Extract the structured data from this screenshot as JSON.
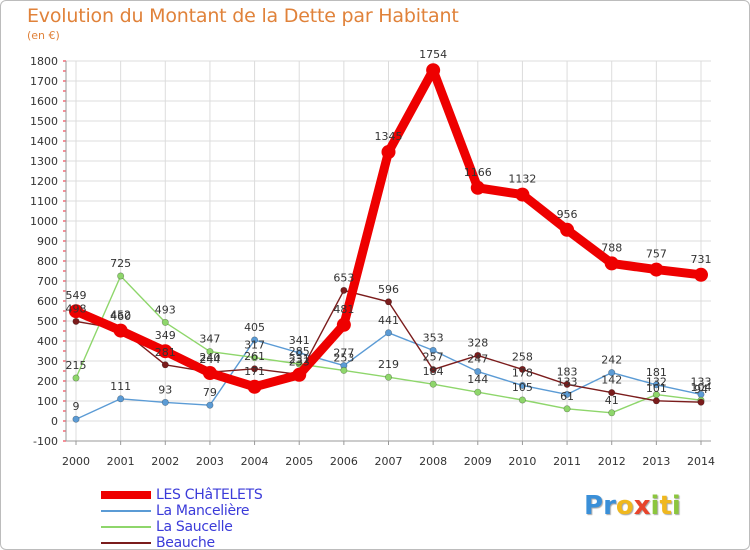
{
  "chart_data": {
    "type": "line",
    "title": "Evolution du Montant de la Dette par Habitant",
    "subtitle": "(en €)",
    "x": [
      2000,
      2001,
      2002,
      2003,
      2004,
      2005,
      2006,
      2007,
      2008,
      2009,
      2010,
      2011,
      2012,
      2013,
      2014
    ],
    "ylim": [
      -100,
      1800
    ],
    "yticks": [
      -100,
      0,
      100,
      200,
      300,
      400,
      500,
      600,
      700,
      800,
      900,
      1000,
      1100,
      1200,
      1300,
      1400,
      1500,
      1600,
      1700,
      1800
    ],
    "grid": true,
    "legend_position": "bottom-left",
    "series": [
      {
        "name": "LES CHâTELETS",
        "color": "#ee0000",
        "values": [
          549,
          452,
          349,
          240,
          171,
          231,
          481,
          1345,
          1754,
          1166,
          1132,
          956,
          788,
          757,
          731
        ]
      },
      {
        "name": "La Mancelière",
        "color": "#5b9bd5",
        "values": [
          9,
          111,
          93,
          79,
          405,
          341,
          277,
          441,
          353,
          247,
          178,
          133,
          242,
          181,
          133
        ]
      },
      {
        "name": "La Saucelle",
        "color": "#8ed66b",
        "values": [
          215,
          725,
          493,
          347,
          317,
          285,
          253,
          219,
          184,
          144,
          105,
          61,
          41,
          132,
          104
        ]
      },
      {
        "name": "Beauche",
        "color": "#7b1c1c",
        "values": [
          498,
          460,
          281,
          244,
          261,
          233,
          653,
          596,
          257,
          328,
          258,
          183,
          142,
          101,
          94
        ]
      }
    ]
  },
  "logo": {
    "letters": [
      "P",
      "r",
      "o",
      "x",
      "i",
      "t",
      "i"
    ],
    "colors": [
      "#3a8fd8",
      "#3a8fd8",
      "#f0b81e",
      "#e8452c",
      "#8cc63e",
      "#f0b81e",
      "#8cc63e"
    ]
  }
}
